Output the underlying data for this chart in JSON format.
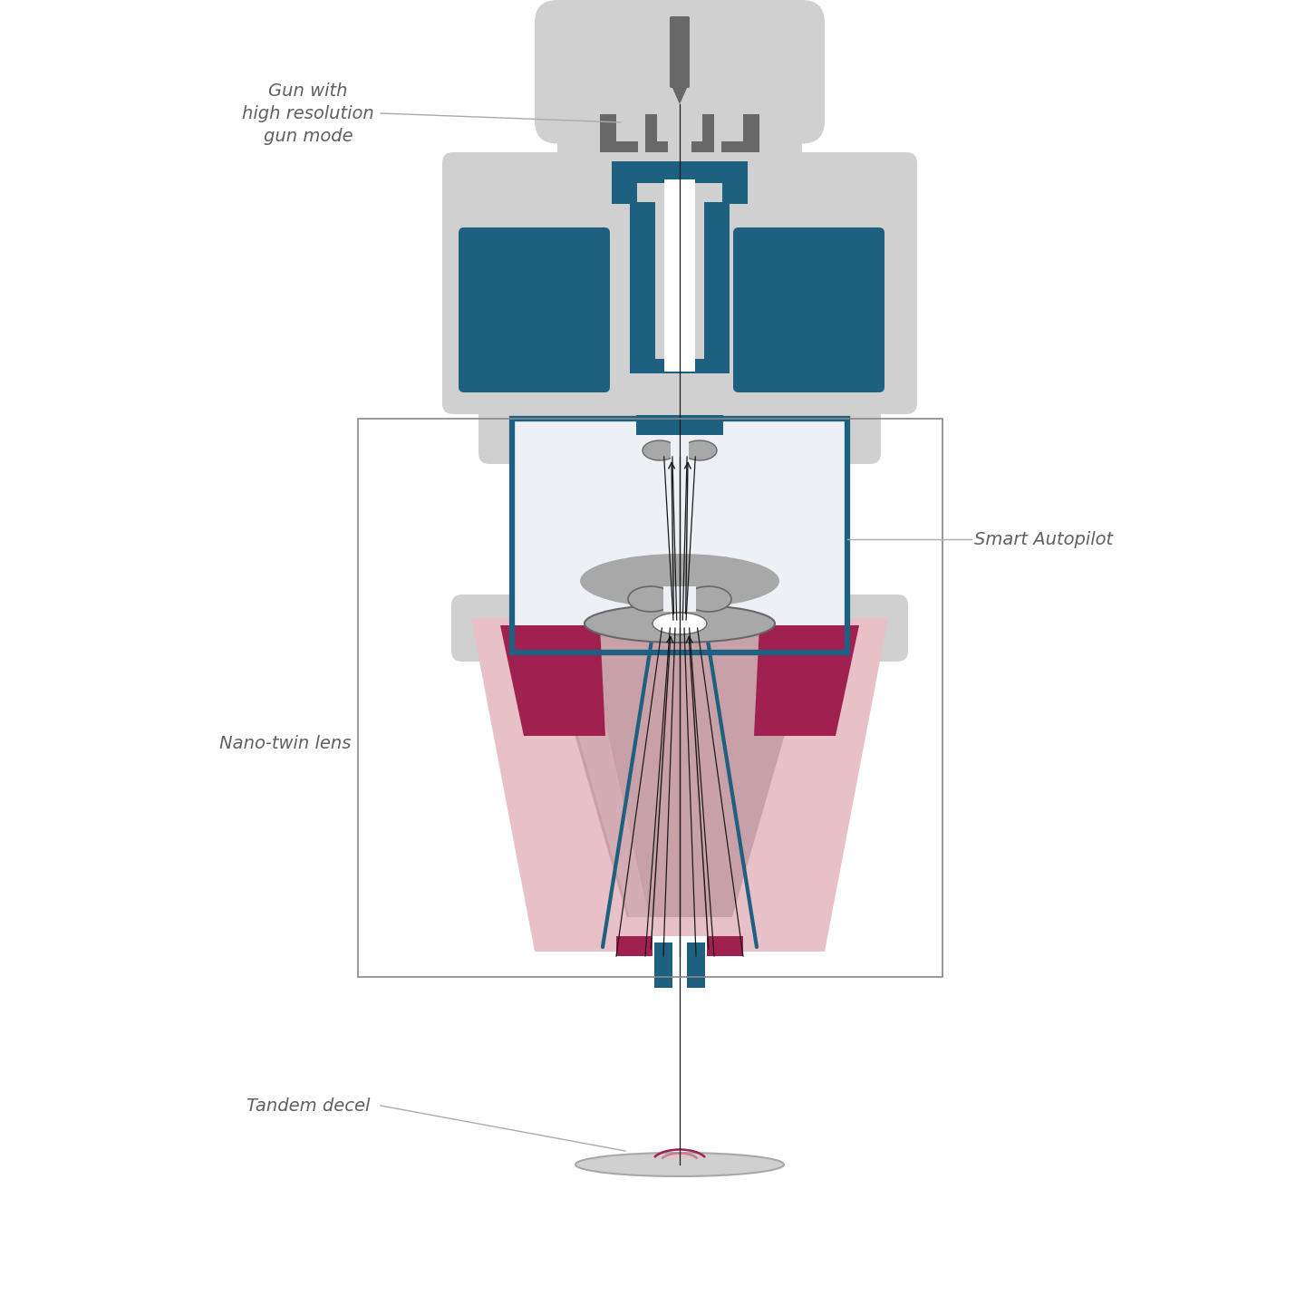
{
  "bg_color": "#ffffff",
  "teal": "#1d6080",
  "teal_dark": "#16506e",
  "teal_light": "#2a7090",
  "gray_light": "#d0d0d0",
  "gray_med": "#a8a8a8",
  "gray_dark": "#686868",
  "gray_very_light": "#e8e8e8",
  "pink_light": "#dba8b0",
  "pink_lighter": "#e8c0c8",
  "pink_med": "#c88090",
  "crimson": "#a02050",
  "label_color": "#606060",
  "line_color": "#a0a0a0",
  "label_gun": "Gun with\nhigh resolution\ngun mode",
  "label_smart": "Smart Autopilot",
  "label_nano": "Nano-twin lens",
  "label_tandem": "Tandem decel"
}
